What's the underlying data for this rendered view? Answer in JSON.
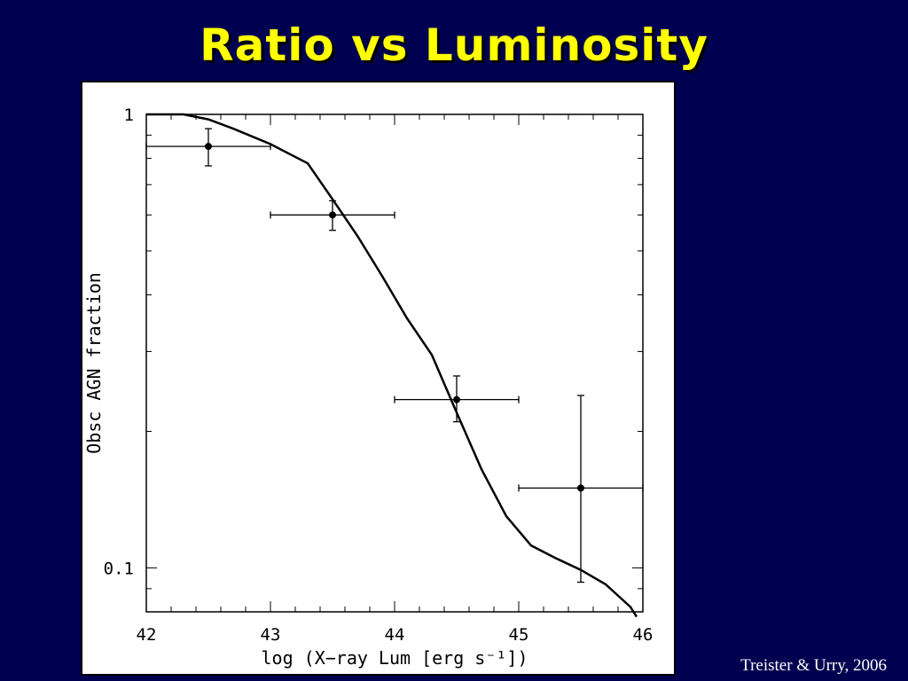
{
  "slide": {
    "title": "Ratio vs Luminosity",
    "credit": "Treister & Urry, 2006",
    "background_color": "#000050",
    "title_color": "#ffff00"
  },
  "chart_data": {
    "type": "scatter",
    "title": "",
    "xlabel": "log (X−ray Lum [erg s⁻¹])",
    "ylabel": "Obsc AGN fraction",
    "xlim": [
      42,
      46
    ],
    "ylim": [
      0.08,
      1.0
    ],
    "y_scale": "log",
    "x_ticks": [
      "42",
      "43",
      "44",
      "45",
      "46"
    ],
    "y_tick_labels": [
      {
        "value": 1,
        "label": "1"
      },
      {
        "value": 0.1,
        "label": "0.1"
      }
    ],
    "series": [
      {
        "kind": "points_with_errorbars",
        "points": [
          {
            "x": 42.5,
            "y": 0.85,
            "xerr": [
              42.0,
              43.0
            ],
            "yerr": [
              0.77,
              0.93
            ]
          },
          {
            "x": 43.5,
            "y": 0.6,
            "xerr": [
              43.0,
              44.0
            ],
            "yerr": [
              0.555,
              0.645
            ]
          },
          {
            "x": 44.5,
            "y": 0.235,
            "xerr": [
              44.0,
              45.0
            ],
            "yerr": [
              0.21,
              0.265
            ]
          },
          {
            "x": 45.5,
            "y": 0.15,
            "xerr": [
              45.0,
              46.0
            ],
            "yerr": [
              0.093,
              0.24
            ]
          }
        ]
      },
      {
        "kind": "model_curve",
        "points": [
          {
            "x": 42.0,
            "y": 1.0
          },
          {
            "x": 42.3,
            "y": 1.0
          },
          {
            "x": 42.5,
            "y": 0.975
          },
          {
            "x": 42.7,
            "y": 0.93
          },
          {
            "x": 43.0,
            "y": 0.86
          },
          {
            "x": 43.3,
            "y": 0.78
          },
          {
            "x": 43.5,
            "y": 0.65
          },
          {
            "x": 43.7,
            "y": 0.54
          },
          {
            "x": 43.9,
            "y": 0.44
          },
          {
            "x": 44.1,
            "y": 0.355
          },
          {
            "x": 44.3,
            "y": 0.295
          },
          {
            "x": 44.5,
            "y": 0.22
          },
          {
            "x": 44.7,
            "y": 0.165
          },
          {
            "x": 44.9,
            "y": 0.13
          },
          {
            "x": 45.1,
            "y": 0.112
          },
          {
            "x": 45.3,
            "y": 0.105
          },
          {
            "x": 45.5,
            "y": 0.099
          },
          {
            "x": 45.7,
            "y": 0.092
          },
          {
            "x": 45.9,
            "y": 0.082
          },
          {
            "x": 45.95,
            "y": 0.078
          }
        ]
      }
    ],
    "grid": false,
    "legend": "none"
  }
}
